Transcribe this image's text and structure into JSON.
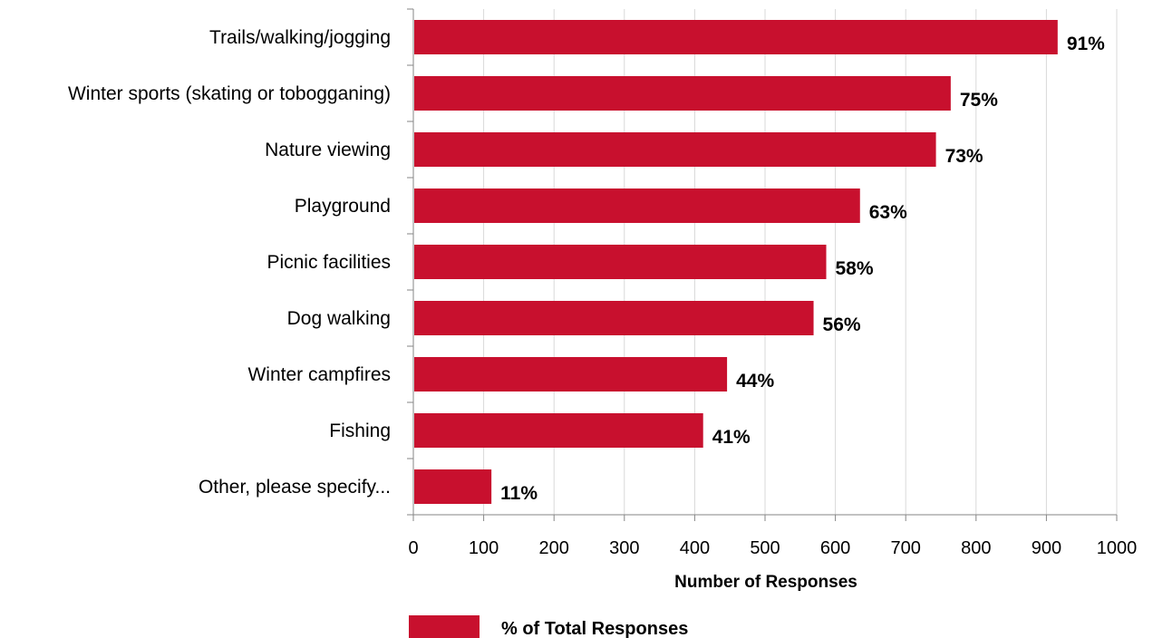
{
  "chart_data": {
    "type": "bar",
    "orientation": "horizontal",
    "categories": [
      "Trails/walking/jogging",
      "Winter sports (skating or tobogganing)",
      "Nature viewing",
      "Playground",
      "Picnic facilities",
      "Dog walking",
      "Winter campfires",
      "Fishing",
      "Other, please specify..."
    ],
    "values": [
      916,
      764,
      743,
      635,
      587,
      569,
      446,
      412,
      111
    ],
    "data_labels": [
      "91%",
      "75%",
      "73%",
      "63%",
      "58%",
      "56%",
      "44%",
      "41%",
      "11%"
    ],
    "xlabel": "Number of Responses",
    "ylabel": "",
    "xlim": [
      0,
      1000
    ],
    "xticks": [
      "0",
      "100",
      "200",
      "300",
      "400",
      "500",
      "600",
      "700",
      "800",
      "900",
      "1000"
    ],
    "grid": true,
    "legend": {
      "position": "bottom",
      "entries": [
        "% of Total Responses"
      ]
    },
    "bar_color": "#c8102e",
    "grid_color": "#d9d9d9",
    "axis_color": "#868686"
  }
}
